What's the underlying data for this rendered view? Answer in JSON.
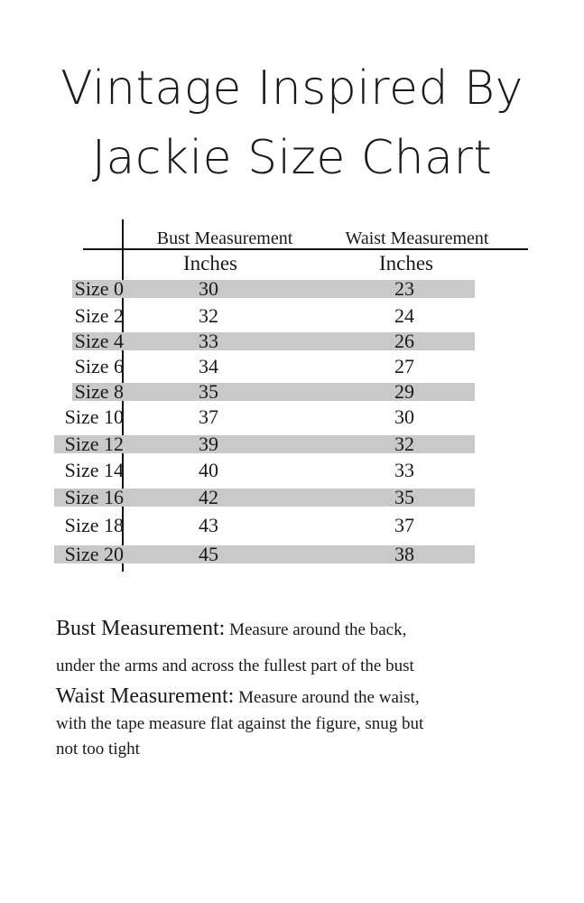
{
  "title": {
    "line1": "Vintage Inspired By",
    "line2": "Jackie Size Chart"
  },
  "table": {
    "headers": [
      "Bust Measurement",
      "Waist Measurement"
    ],
    "units": [
      "Inches",
      "Inches"
    ],
    "band_color": "#c9c9c9",
    "rows": [
      {
        "size": "Size 0",
        "bust": "30",
        "waist": "23"
      },
      {
        "size": "Size 2",
        "bust": "32",
        "waist": "24"
      },
      {
        "size": "Size 4",
        "bust": "33",
        "waist": "26"
      },
      {
        "size": "Size 6",
        "bust": "34",
        "waist": "27"
      },
      {
        "size": "Size 8",
        "bust": "35",
        "waist": "29"
      },
      {
        "size": "Size 10",
        "bust": "37",
        "waist": "30"
      },
      {
        "size": "Size 12",
        "bust": "39",
        "waist": "32"
      },
      {
        "size": "Size 14",
        "bust": "40",
        "waist": "33"
      },
      {
        "size": "Size 16",
        "bust": "42",
        "waist": "35"
      },
      {
        "size": "Size 18",
        "bust": "43",
        "waist": "37"
      },
      {
        "size": "Size 20",
        "bust": "45",
        "waist": "38"
      }
    ]
  },
  "notes": {
    "bust_label": "Bust Measurement:",
    "bust_text_1": "Measure around the back,",
    "bust_text_2": "under the arms and across the fullest part of the bust",
    "waist_label": "Waist Measurement:",
    "waist_text_1": "Measure around the waist,",
    "waist_text_2": "with the tape measure flat against the figure, snug but",
    "waist_text_3": "not too tight"
  }
}
